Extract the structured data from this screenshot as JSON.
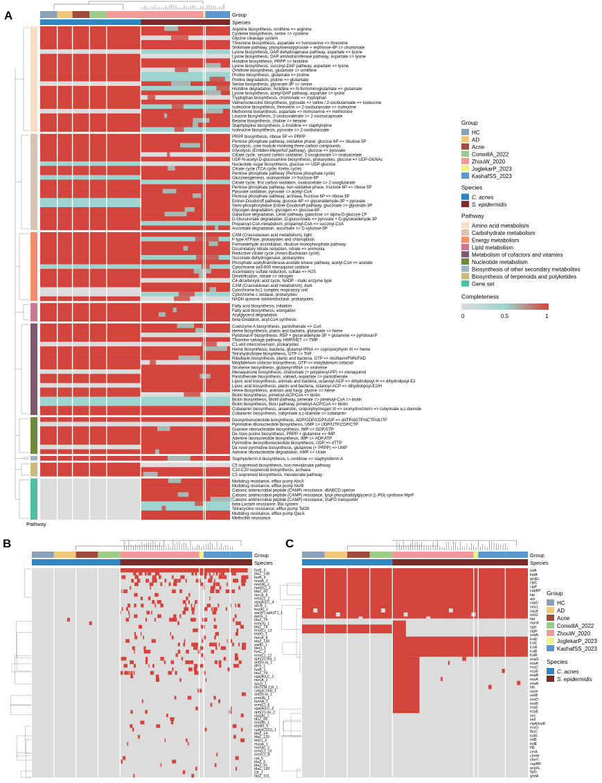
{
  "colors": {
    "heat_low": "#dcdcdc",
    "heat_mid": "#9ed4cf",
    "heat_high": "#d2443c",
    "species": {
      "C. acnes": "#2f86c0",
      "S. epidermidis": "#7b2a2a"
    },
    "group": {
      "HC": "#8aa1b6",
      "AD": "#f3c77a",
      "Acne": "#a14b3e",
      "ConwillA_2022": "#9ccc8a",
      "ZhouW_2020": "#f19a9a",
      "JoglekarP_2023": "#eef28a",
      "KashafSS_2023": "#5c97cf"
    },
    "pathway": {
      "Amino acid metabolism": "#f7dcc6",
      "Carbohydrate metabolism": "#d8c4b6",
      "Energy metabolism": "#f48b6a",
      "Lipid metabolism": "#c97a91",
      "Metabolism of cofactors and vitamins": "#7d5a6e",
      "Nucleotide metabolism": "#6f8a3e",
      "Biosynthesis of other secondary metabolites": "#9fb4c6",
      "Biosynthesis of terpenoids and polyketides": "#c9b97a",
      "Gene set": "#4fc1a1"
    }
  },
  "chart_data": [
    {
      "panel": "A",
      "type": "heatmap",
      "annotation_labels": [
        "Group",
        "Species"
      ],
      "row_annotation_label": "Pathway",
      "group_order": [
        "HC",
        "AD",
        "Acne",
        "ConwillA_2022",
        "ZhouW_2020",
        "JoglekarP_2023",
        "KashafSS_2023"
      ],
      "row_groups": [
        {
          "pathway": "Amino acid metabolism",
          "rows": [
            "Arginine biosynthesis, ornithine => arginine",
            "Cysteine biosynthesis, serine => cysteine",
            "Glycine cleavage system",
            "Threonine biosynthesis, aspartate => homoserine => threonine",
            "Shikimate pathway, phosphoenolpyruvate + erythrose-4P => chorismate",
            "Lysine biosynthesis, DAP dehydrogenase pathway, aspartate => lysine",
            "Lysine biosynthesis, DAP aminotransferase pathway, aspartate => lysine",
            "Histidine biosynthesis, PRPP => histidine",
            "Lysine biosynthesis, succinyl-DAP pathway, aspartate => lysine",
            "Ornithine biosynthesis, glutamate => ornithine",
            "Proline biosynthesis, glutamate => proline",
            "Proline degradation, proline => glutamate",
            "Serine biosynthesis, glycerate-3P => serine",
            "Histidine degradation, histidine => N-formiminoglutamate => glutamate",
            "Lysine biosynthesis, acetyl-DAP pathway, aspartate => lysine",
            "Tryptophan biosynthesis, chorismate => tryptophan",
            "Valine/isoleucine biosynthesis, pyruvate => valine / 2-oxobutanoate => isoleucine",
            "Isoleucine biosynthesis, threonine => 2-oxobutanoate => isoleucine",
            "Methionine biosynthesis, aspartate => homoserine => methionine",
            "Leucine biosynthesis, 2-oxoisovalerate => 2-oxoisocaproate",
            "Betaine biosynthesis, choline => betaine",
            "Staphylopine biosynthesis, L-histidine => staphylopine",
            "Isoleucine biosynthesis, pyruvate => 2-oxobutanoate"
          ]
        },
        {
          "pathway": "Carbohydrate metabolism",
          "rows": [
            "PRPP biosynthesis, ribose 5P => PRPP",
            "Pentose phosphate pathway, oxidative phase, glucose 6P => ribulose 5P",
            "Glycolysis, core module involving three-carbon compounds",
            "Glycolysis (Embden-Meyerhof pathway), glucose => pyruvate",
            "Citrate cycle, second carbon oxidation, 2-oxoglutarate => oxaloacetate",
            "UDP-N-acetyl-D-glucosamine biosynthesis, prokaryotes, glucose => UDP-GlcNAc",
            "Nucleotide sugar biosynthesis, glucose => UDP-glucose",
            "Citrate cycle (TCA cycle, Krebs cycle)",
            "Pentose phosphate pathway (Pentose phosphate cycle)",
            "Gluconeogenesis, oxaloacetate => fructose-6P",
            "Citrate cycle, first carbon oxidation, oxaloacetate => 2-oxoglutarate",
            "Pentose phosphate pathway, non-oxidative phase, fructose 6P => ribose 5P",
            "Pyruvate oxidation, pyruvate => acetyl-CoA",
            "Pentose phosphate pathway, archaea, fructose 6P => ribose 5P",
            "Entner-Doudoroff pathway, glucose-6P => glyceraldehyde-3P + pyruvate",
            "Semi-phosphorylative Entner-Doudoroff pathway, gluconate => glycerate-3P",
            "Glycogen degradation, glycogen => glucose-6P",
            "Galactose degradation, Leloir pathway, galactose => alpha-D-glucose-1P",
            "D-Glucuronate degradation, D-glucuronate => pyruvate + D-glyceraldehyde 3P",
            "Propanoyl-CoA metabolism, propanoyl-CoA => succinyl-CoA",
            "Ascorbate degradation, ascorbate => D-xylulose-5P"
          ]
        },
        {
          "pathway": "Energy metabolism",
          "rows": [
            "CAM (Crassulacean acid metabolism), light",
            "F-type ATPase, prokaryotes and chloroplasts",
            "Formaldehyde assimilation, ribulose monophosphate pathway",
            "Dissimilatory nitrate reduction, nitrate => ammonia",
            "Reductive citrate cycle (Arnon-Buchanan cycle)",
            "Succinate dehydrogenase, prokaryotes",
            "Phosphate acetyltransferase-acetate kinase pathway, acetyl-CoA => acetate",
            "Cytochrome aa3-600 menaquinol oxidase",
            "Assimilatory sulfate reduction, sulfate => H2S",
            "Denitrification, nitrate => nitrogen",
            "C4-dicarboxylic acid cycle, NADP - malic enzyme type",
            "CAM (Crassulacean acid metabolism), dark",
            "Cytochrome bc1 complex respiratory unit",
            "Cytochrome c oxidase, prokaryotes",
            "NADH quinone oxidoreductase, prokaryotes"
          ]
        },
        {
          "pathway": "Lipid metabolism",
          "rows": [
            "Fatty acid biosynthesis, initiation",
            "Fatty acid biosynthesis, elongation",
            "Acylglycerol degradation",
            "beta-Oxidation, acyl-CoA synthesis"
          ]
        },
        {
          "pathway": "Metabolism of cofactors and vitamins",
          "rows": [
            "Coenzyme A biosynthesis, pantothenate => CoA",
            "Heme biosynthesis, plants and bacteria, glutamate => heme",
            "Pyridoxal-P biosynthesis, R5P + glyceraldehyde-3P + glutamine => pyridoxal-P",
            "Thiamine salvage pathway, HMP/HET => TMP",
            "C1-unit interconversion, prokaryotes",
            "Heme biosynthesis, bacteria, glutamyl-tRNA => coproporphyrin III => heme",
            "Tetrahydrofolate biosynthesis, GTP => THF",
            "Riboflavin biosynthesis, plants and bacteria, GTP => riboflavin/FMN/FAD",
            "Molybdenum cofactor biosynthesis, GTP => molybdenum cofactor",
            "Siroheme biosynthesis, glutamyl-tRNA => siroheme",
            "Menaquinone biosynthesis, chorismate (+ polyprenyl-PP) => menaquinol",
            "Pantothenate biosynthesis, valine/L-aspartate => pantothenate",
            "Lipoic acid biosynthesis, animals and bacteria, octanoyl-ACP => dihydrolipoyl-H => dihydrolipoyl-E2",
            "Lipoic acid biosynthesis, plants and bacteria, octanoyl-ACP => dihydrolipoyl-E2/H",
            "Heme biosynthesis, animals and fungi, glycine => heme",
            "Biotin biosynthesis, pimeloyl-ACP/CoA => biotin",
            "Biotin biosynthesis, BioW pathway, pimelate => pimeloyl-CoA => biotin",
            "Biotin biosynthesis, BioU pathway, pimeloyl-ACP/CoA => biotin",
            "Cobalamin biosynthesis, anaerobic, uroporphyrinogen III => sirohydrochlorin => cobyrinate a,c-diamide",
            "Cobalamin biosynthesis, cobyrinate a,c-diamide => cobalamin"
          ]
        },
        {
          "pathway": "Nucleotide metabolism",
          "rows": [
            "Deoxyribonucleotide biosynthesis, ADP/GDP/CDP/UDP => dATP/dGTP/dCTP/dUTP",
            "Pyrimidine ribonucleotide biosynthesis, UMP => UDP/UTP,CDP/CTP",
            "Guanine ribonucleotide biosynthesis, IMP => GDP,GTP",
            "De novo purine biosynthesis, PRPP + glutamine => IMP",
            "Adenine ribonucleotide biosynthesis, IMP => ADP,ATP",
            "Pyrimidine deoxyribonucleotide biosynthesis, UDP => dTTP",
            "De novo pyrimidine biosynthesis, glutamine (+ PRPP) => UMP",
            "Adenine ribonucleotide degradation, AMP => Urate"
          ]
        },
        {
          "pathway": "Biosynthesis of other secondary metabolites",
          "rows": [
            "Staphyloferrin A biosynthesis, L-ornithine => staphyloferrin A"
          ]
        },
        {
          "pathway": "Biosynthesis of terpenoids and polyketides",
          "rows": [
            "C5 isoprenoid biosynthesis, non-mevalonate pathway",
            "C10-C20 isoprenoid biosynthesis, archaea",
            "C5 isoprenoid biosynthesis, mevalonate pathway"
          ]
        },
        {
          "pathway": "Gene set",
          "rows": [
            "Multidrug resistance, efflux pump AbcA",
            "Multidrug resistance, efflux pump NorB",
            "Cationic antimicrobial peptide (CAMP) resistance, dltABCD operon",
            "Cationic antimicrobial peptide (CAMP) resistance, lysyl-phosphatidylglycerol (L-PG) synthase MprF",
            "Cationic antimicrobial peptide (CAMP) resistance, VraFG transporter",
            "beta-Lactam resistance, Bla system",
            "Tetracycline resistance, efflux pump Tet38",
            "Multidrug resistance, efflux pump QacA",
            "Methicillin resistance"
          ]
        }
      ]
    },
    {
      "panel": "B",
      "type": "heatmap",
      "annotation_labels": [
        "Group",
        "Species"
      ],
      "rows": [
        "fosB_3",
        "blaZ_138",
        "fosB_4",
        "mupA_2",
        "msr(A)_2",
        "mph(C)_2",
        "blaZ_60",
        "mecA_8",
        "erm(C)_2",
        "vga(A)LC_4",
        "qacB_1",
        "lnu(A)_1",
        "aac(6')-aph(2'')_1",
        "qacG_1",
        "blaZ_78",
        "erm(X)_1",
        "blaZ_74",
        "erm(C)_13",
        "tet(K)_1",
        "mecA_8",
        "blaZ_133",
        "aadD_1",
        "bleO_1",
        "fusC_1",
        "erm(C)_12",
        "aph(3')-IIIa_1",
        "ant(6)-Ia_1",
        "dfrG_1",
        "fusB_1",
        "blaZ_79",
        "vga(A)LC_1",
        "mecA_2",
        "qacD_1",
        "blaTEM-116_1",
        "cat(pC194)_1",
        "ant(9)-Ia_1",
        "erm(A)_1",
        "formA_1",
        "erm(C)_6",
        "vga(A)LC_2",
        "aph(3')-IIa_2",
        "vga(A)_1",
        "blaZ_65",
        "erm(B)_1",
        "tet(W)_5",
        "cat(pC221)_1",
        "blaZ_14",
        "blaZ_132",
        "tet(L)_2",
        "mupA_1",
        "msr(A)_2",
        "erm(C)_10",
        "erm(C)_8",
        "cat_5",
        "blaZ_5",
        "blaZ_51",
        "blaZ_120",
        "Cfr_1",
        "blaZ_101"
      ]
    },
    {
      "panel": "C",
      "type": "heatmap",
      "annotation_labels": [
        "Group",
        "Species"
      ],
      "rows": [
        "tufA",
        "katA",
        "groEL",
        "clpC",
        "clpP",
        "capBP",
        "lap",
        "aur",
        "capC",
        "smcL",
        "sspA",
        "ureG",
        "hld",
        "mprA",
        "ugd",
        "sigH",
        "sodA",
        "icaD",
        "icaC",
        "icaA",
        "icaB",
        "icaR",
        "esaG",
        "esxA",
        "essC",
        "essB",
        "esaB",
        "essA",
        "esaA",
        "hlb",
        "narH",
        "ureB",
        "esxD",
        "esxB",
        "essE",
        "esaE",
        "sec",
        "sell",
        "vipA/tssB",
        "esxG",
        "fbnC",
        "isdG",
        "srtB",
        "isdE",
        "fliE",
        "cerA",
        "cheW",
        "cheY",
        "capBB",
        "acpXL",
        "flgG",
        "gndA"
      ]
    }
  ],
  "legend": {
    "group_title": "Group",
    "group_items": [
      "HC",
      "AD",
      "Acne",
      "ConwillA_2022",
      "ZhouW_2020",
      "JoglekarP_2023",
      "KashafSS_2023"
    ],
    "species_title": "Species",
    "species_items": [
      "C. acnes",
      "S. epidermidis"
    ],
    "pathway_title": "Pathway",
    "pathway_items": [
      "Amino acid metabolism",
      "Carbohydrate metabolism",
      "Energy metabolism",
      "Lipid metabolism",
      "Metabolism of cofactors and vitamins",
      "Nucleotide metabolism",
      "Biosynthesis of other secondary metabolites",
      "Biosynthesis of terpenoids and polyketides",
      "Gene set"
    ],
    "completeness_title": "Completeness",
    "completeness_ticks": [
      "0",
      "0.5",
      "1"
    ]
  }
}
